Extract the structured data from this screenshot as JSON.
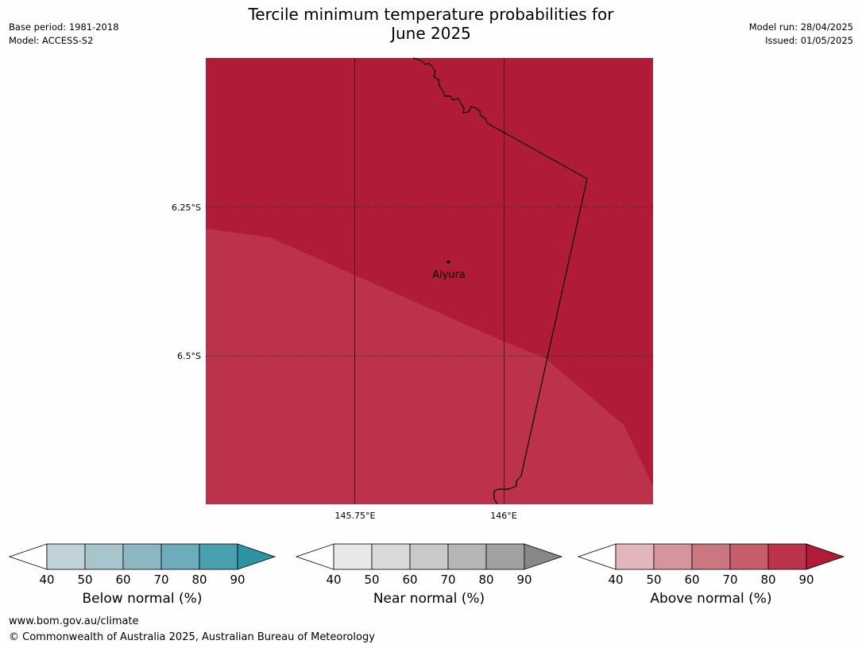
{
  "title_line1": "Tercile minimum temperature probabilities for",
  "title_line2": "June 2025",
  "meta_left": {
    "base_period": "Base period: 1981-2018",
    "model": "Model: ACCESS-S2"
  },
  "meta_right": {
    "model_run": "Model run: 28/04/2025",
    "issued": "Issued: 01/05/2025"
  },
  "map": {
    "lat_labels": [
      "6.25°S",
      "6.5°S"
    ],
    "lon_labels": [
      "145.75°E",
      "146°E"
    ],
    "place": "Aiyura",
    "colors": {
      "dark": "#b01c38",
      "light": "#bc324a",
      "border": "#000000"
    }
  },
  "colorbars": [
    {
      "title": "Below normal (%)",
      "ticks": [
        "40",
        "50",
        "60",
        "70",
        "80",
        "90"
      ],
      "colors": [
        "#bfd3d9",
        "#a7c5cb",
        "#8ab7c2",
        "#6dacba",
        "#4aa0ae",
        "#2b94a3"
      ]
    },
    {
      "title": "Near normal (%)",
      "ticks": [
        "40",
        "50",
        "60",
        "70",
        "80",
        "90"
      ],
      "colors": [
        "#e8e8e8",
        "#dadada",
        "#c9c9c9",
        "#b6b6b6",
        "#a1a1a1",
        "#888888"
      ]
    },
    {
      "title": "Above normal (%)",
      "ticks": [
        "40",
        "50",
        "60",
        "70",
        "80",
        "90"
      ],
      "colors": [
        "#e2b6bc",
        "#d6959d",
        "#cb7780",
        "#c55e6a",
        "#bc324a",
        "#b01c38"
      ]
    }
  ],
  "footer": {
    "url": "www.bom.gov.au/climate",
    "copyright": "© Commonwealth of Australia 2025, Australian Bureau of Meteorology"
  }
}
